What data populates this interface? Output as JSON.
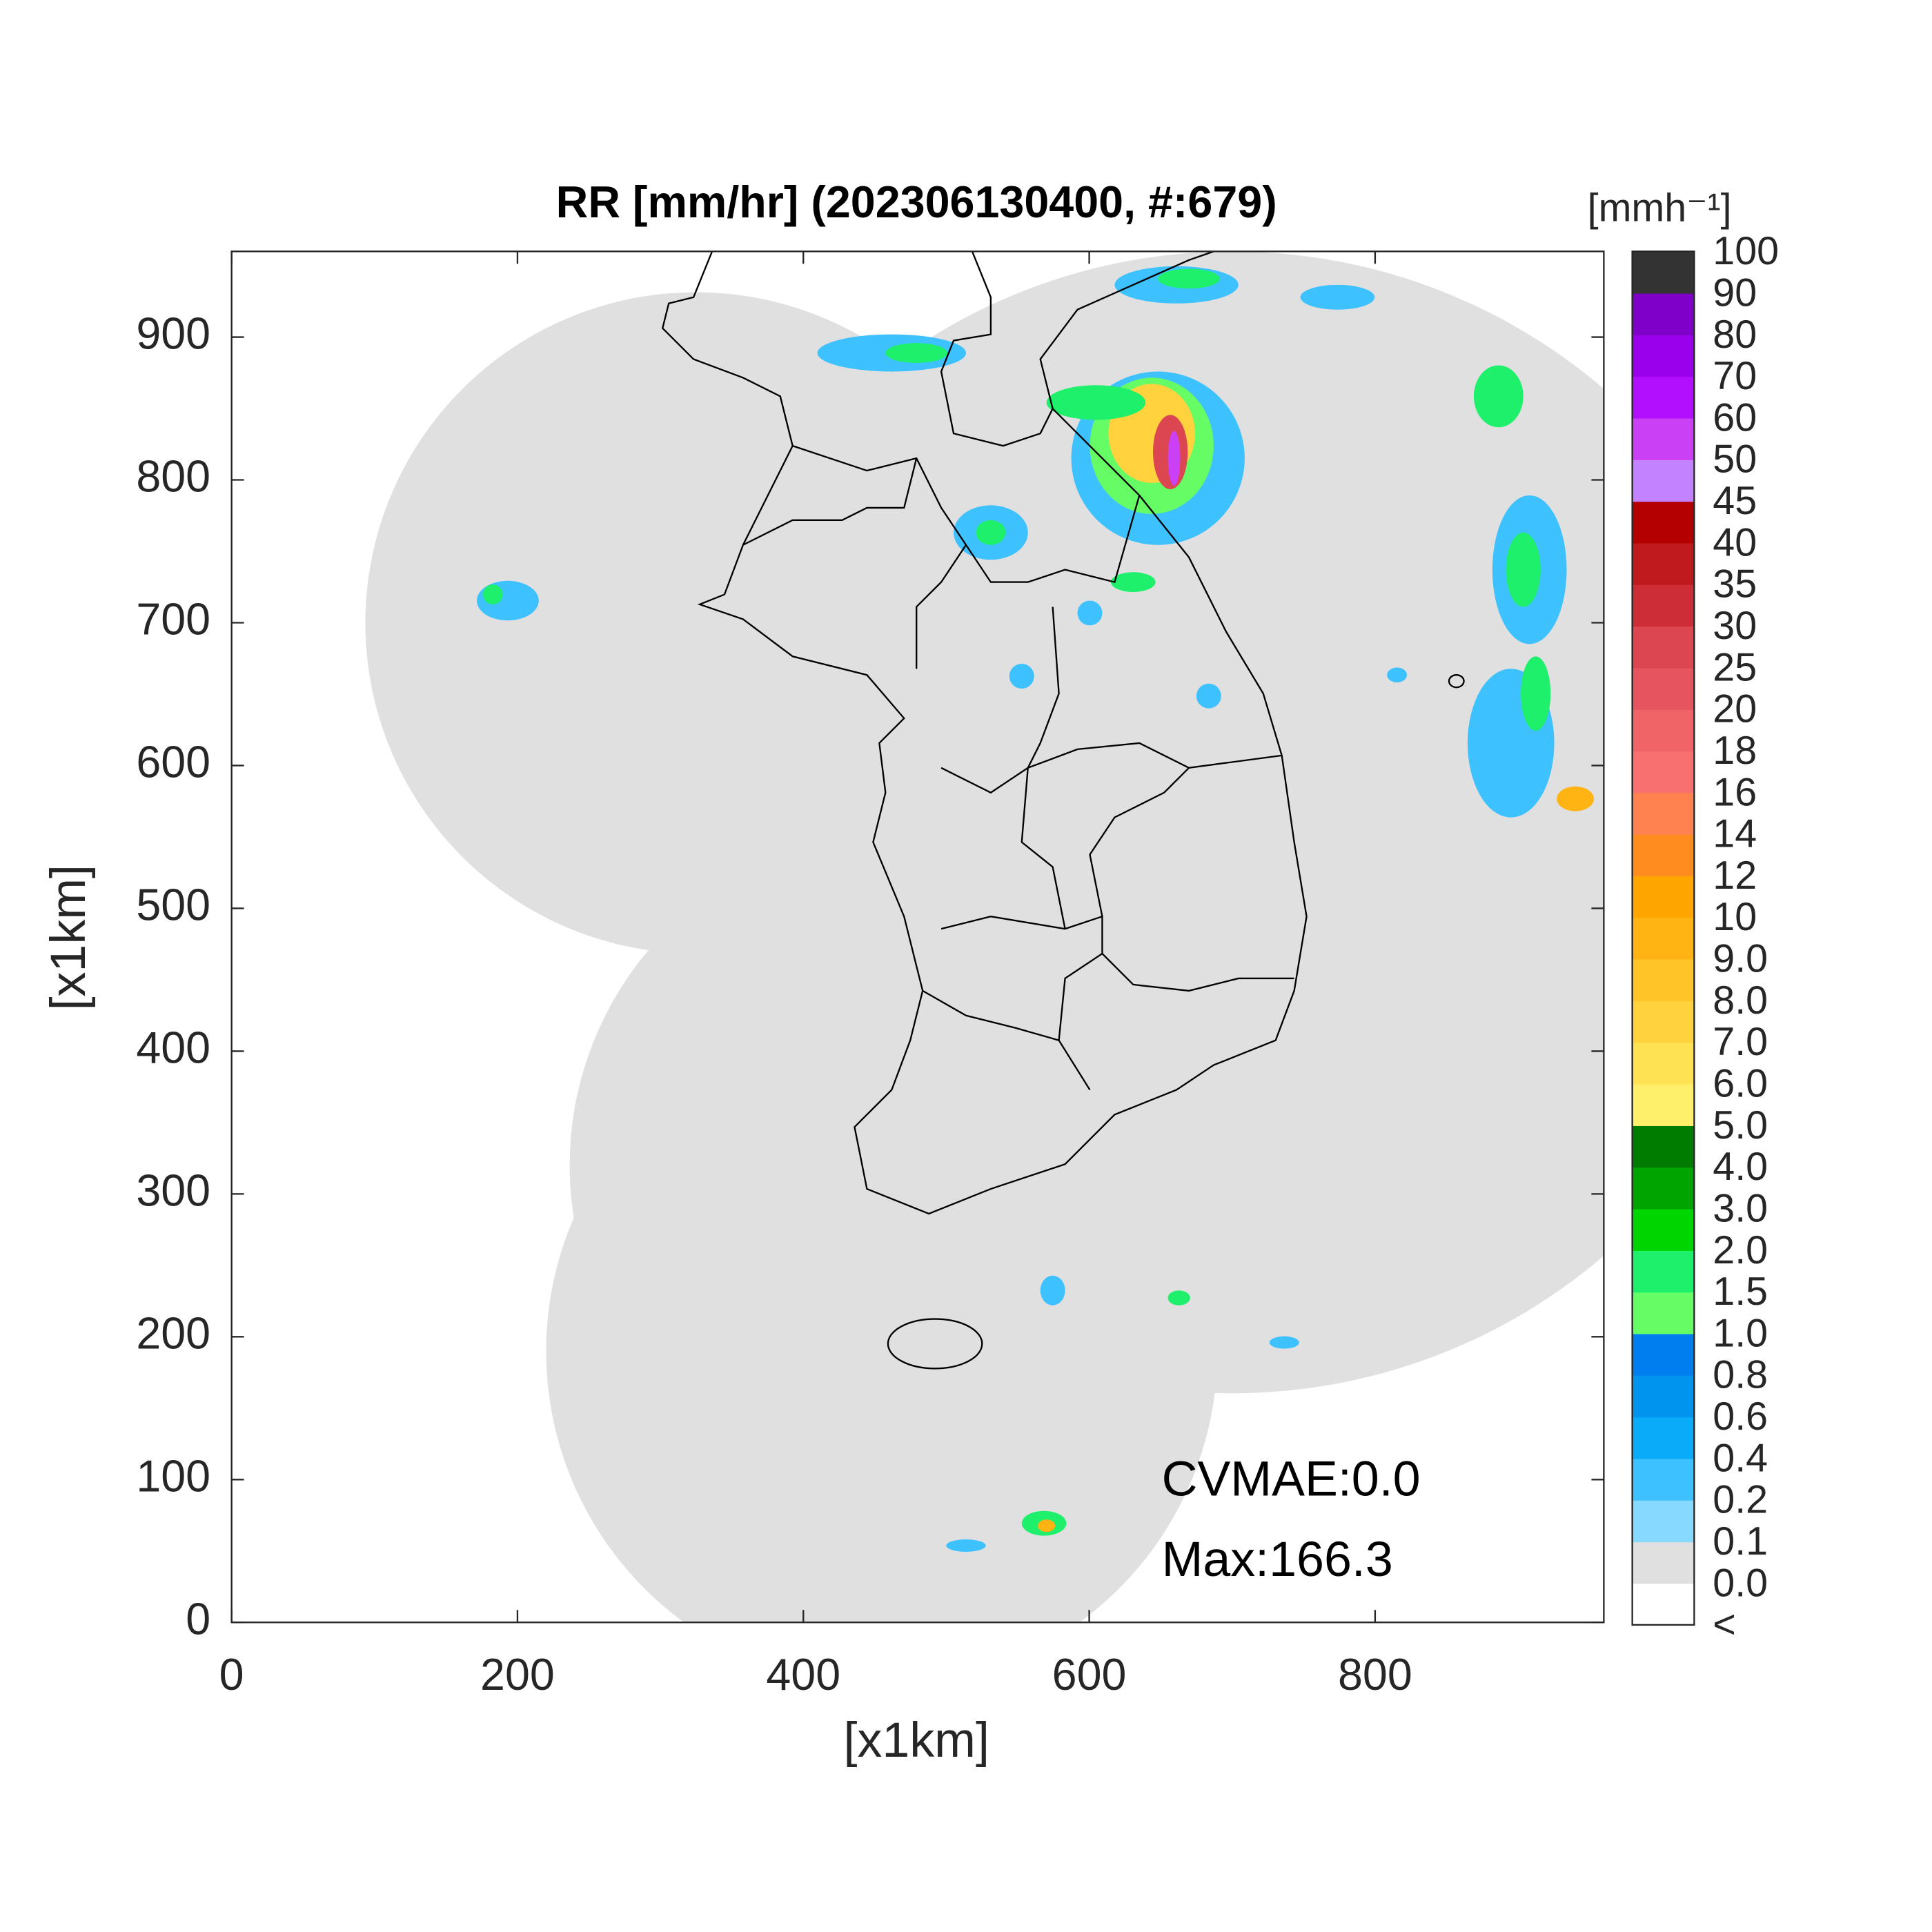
{
  "chart_data": {
    "type": "map",
    "title": "RR [mm/hr] (202306130400, #:679)",
    "xlabel": "[x1km]",
    "ylabel": "[x1km]",
    "xlim": [
      0,
      960
    ],
    "ylim": [
      0,
      960
    ],
    "xticks": [
      0,
      200,
      400,
      600,
      800
    ],
    "yticks": [
      0,
      100,
      200,
      300,
      400,
      500,
      600,
      700,
      800,
      900
    ],
    "colorbar": {
      "title": "[mmh⁻¹]",
      "ticks": [
        "<",
        "0.0",
        "0.1",
        "0.2",
        "0.4",
        "0.6",
        "0.8",
        "1.0",
        "1.5",
        "2.0",
        "3.0",
        "4.0",
        "5.0",
        "6.0",
        "7.0",
        "8.0",
        "9.0",
        "10",
        "12",
        "14",
        "16",
        "18",
        "20",
        "25",
        "30",
        "35",
        "40",
        "45",
        "50",
        "60",
        "70",
        "80",
        "90",
        "100"
      ],
      "colors": [
        "#ffffff",
        "#e0e0e0",
        "#87d9ff",
        "#3ec1ff",
        "#0aabf8",
        "#0094ee",
        "#007def",
        "#66fc66",
        "#1ef06c",
        "#00d500",
        "#00a400",
        "#007c00",
        "#fff06c",
        "#ffe254",
        "#ffd23e",
        "#ffc428",
        "#ffb414",
        "#ffa500",
        "#ff8c1e",
        "#ff8250",
        "#f87070",
        "#f06468",
        "#e6555f",
        "#dc4650",
        "#cd2d36",
        "#c01a1f",
        "#b40000",
        "#c382ff",
        "#ca40f5",
        "#b20eff",
        "#9b00ec",
        "#7f00c8",
        "#333333"
      ]
    },
    "annotations": [
      "CVMAE:0.0",
      "Max:166.3"
    ]
  }
}
